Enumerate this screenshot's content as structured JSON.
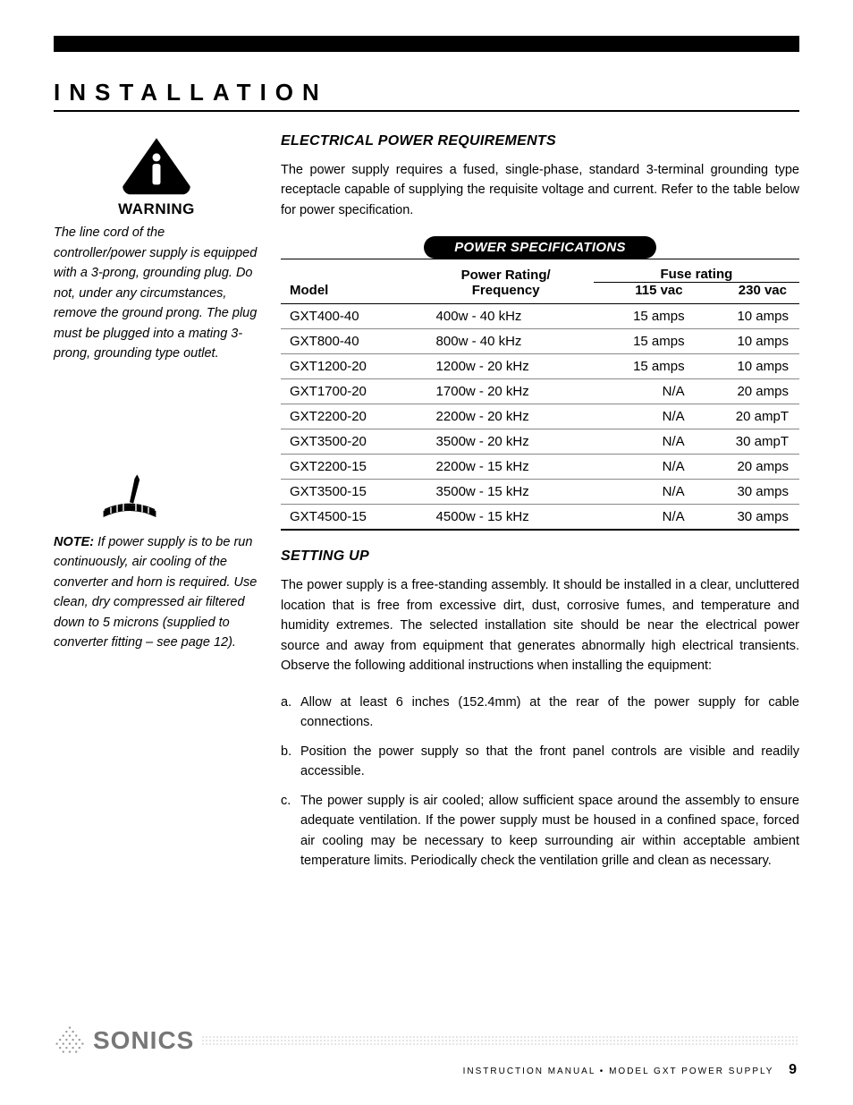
{
  "section_title": "INSTALLATION",
  "warning": {
    "label": "WARNING",
    "text": "The line cord of the controller/power supply is equipped with a 3-prong, grounding plug. Do not, under any circumstances, remove the ground prong. The plug must be plugged into a mating 3-prong, grounding type outlet."
  },
  "note": {
    "label": "NOTE:",
    "text": " If power supply is to be run continuously, air cooling of the converter and horn is required. Use clean, dry compressed air filtered down to 5 microns (supplied to converter fitting – see page 12)."
  },
  "epr": {
    "heading": "ELECTRICAL POWER REQUIREMENTS",
    "para": "The power supply requires a fused, single-phase, standard 3-terminal grounding type receptacle capable of supplying the requisite voltage and current. Refer to the table below for power specification."
  },
  "spec_pill": "POWER SPECIFICATIONS",
  "table": {
    "head": {
      "model": "Model",
      "rating_l1": "Power Rating/",
      "rating_l2": "Frequency",
      "fuse": "Fuse rating",
      "v115": "115 vac",
      "v230": "230 vac"
    },
    "rows": [
      {
        "model": "GXT400-40",
        "rating": "400w - 40 kHz",
        "v115": "15 amps",
        "v230": "10 amps"
      },
      {
        "model": "GXT800-40",
        "rating": "800w - 40 kHz",
        "v115": "15 amps",
        "v230": "10 amps"
      },
      {
        "model": "GXT1200-20",
        "rating": "1200w - 20 kHz",
        "v115": "15 amps",
        "v230": "10 amps"
      },
      {
        "model": "GXT1700-20",
        "rating": "1700w - 20 kHz",
        "v115": "N/A",
        "v230": "20 amps"
      },
      {
        "model": "GXT2200-20",
        "rating": "2200w - 20 kHz",
        "v115": "N/A",
        "v230": "20 ampT"
      },
      {
        "model": "GXT3500-20",
        "rating": "3500w - 20 kHz",
        "v115": "N/A",
        "v230": "30 ampT"
      },
      {
        "model": "GXT2200-15",
        "rating": "2200w - 15 kHz",
        "v115": "N/A",
        "v230": "20 amps"
      },
      {
        "model": "GXT3500-15",
        "rating": "3500w - 15 kHz",
        "v115": "N/A",
        "v230": "30 amps"
      },
      {
        "model": "GXT4500-15",
        "rating": "4500w - 15 kHz",
        "v115": "N/A",
        "v230": "30 amps"
      }
    ]
  },
  "setup": {
    "heading": "SETTING UP",
    "para": "The power supply is a free-standing assembly. It should be installed in a clear, uncluttered location that is free from excessive dirt, dust, corrosive fumes, and temperature and humidity extremes. The selected installation site should be near the electrical power source and away from equipment that generates abnormally high electrical transients. Observe the following additional instructions when installing the equipment:",
    "items": [
      {
        "marker": "a.",
        "text": "Allow at least 6 inches (152.4mm) at the rear of the power supply for cable connections."
      },
      {
        "marker": "b.",
        "text": "Position the power supply so that the front panel controls are visible and readily accessible."
      },
      {
        "marker": "c.",
        "text": "The power supply is air cooled; allow sufficient space around the assembly to ensure adequate ventilation. If the power supply must be housed in a confined space, forced air cooling may be necessary to keep surrounding air within acceptable ambient temperature limits. Periodically check the ventilation grille and clean as necessary."
      }
    ]
  },
  "footer": {
    "brand": "SONICS",
    "line": "INSTRUCTION MANUAL • MODEL GXT POWER SUPPLY",
    "page": "9"
  },
  "colors": {
    "black": "#000000",
    "white": "#ffffff",
    "gray_brand": "#777777",
    "gray_dots": "#aaaaaa",
    "row_border": "#888888"
  },
  "typography": {
    "body_pt": 14.5,
    "title_pt": 26,
    "subhead_pt": 16,
    "brand_pt": 28,
    "footer_small_pt": 10
  }
}
